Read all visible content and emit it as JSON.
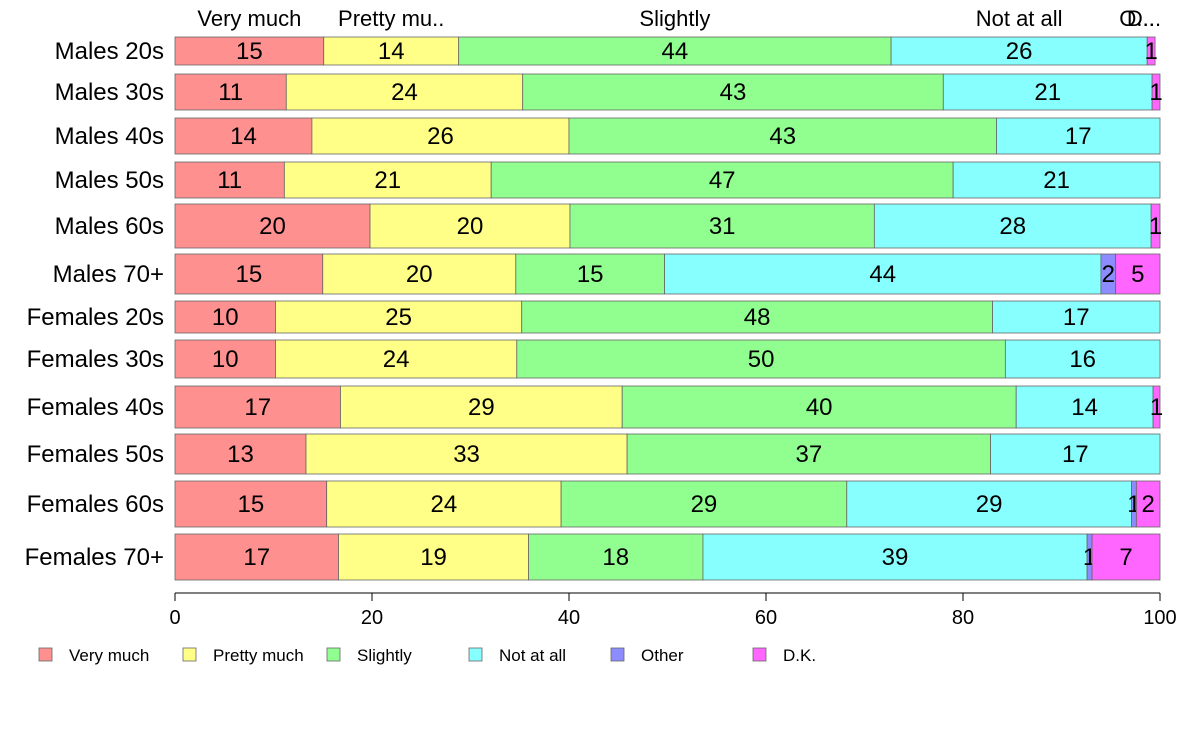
{
  "chart_data": {
    "type": "bar",
    "orientation": "horizontal",
    "stacked": true,
    "categories": [
      "Males 20s",
      "Males 30s",
      "Males 40s",
      "Males 50s",
      "Males 60s",
      "Males 70+",
      "Females 20s",
      "Females 30s",
      "Females 40s",
      "Females 50s",
      "Females 60s",
      "Females 70+"
    ],
    "series": [
      {
        "name": "Very much",
        "color": "#ff9090",
        "values": [
          15,
          11,
          14,
          11,
          20,
          15,
          10,
          10,
          17,
          13,
          15,
          17
        ]
      },
      {
        "name": "Pretty much",
        "color": "#ffff88",
        "values": [
          14,
          24,
          26,
          21,
          20,
          20,
          25,
          24,
          29,
          33,
          24,
          19
        ]
      },
      {
        "name": "Slightly",
        "color": "#90ff90",
        "values": [
          44,
          43,
          43,
          47,
          31,
          15,
          48,
          50,
          40,
          37,
          29,
          18
        ]
      },
      {
        "name": "Not at all",
        "color": "#88ffff",
        "values": [
          26,
          21,
          17,
          21,
          28,
          44,
          17,
          16,
          14,
          17,
          29,
          39
        ]
      },
      {
        "name": "Other",
        "color": "#8c8cff",
        "values": [
          0,
          0,
          0,
          0,
          0,
          2,
          0,
          0,
          0,
          0,
          1,
          1
        ]
      },
      {
        "name": "D.K.",
        "color": "#ff66ff",
        "values": [
          1,
          1,
          0,
          0,
          1,
          5,
          0,
          0,
          1,
          0,
          2,
          7
        ]
      }
    ],
    "series_exact": {
      "Very much": [
        15.1,
        11.3,
        13.9,
        11.1,
        19.8,
        15.0,
        10.2,
        10.2,
        16.8,
        13.3,
        15.4,
        16.6
      ],
      "Pretty much": [
        13.7,
        24.0,
        26.1,
        21.0,
        20.3,
        19.6,
        25.0,
        24.5,
        28.6,
        32.6,
        23.8,
        19.3
      ],
      "Slightly": [
        43.9,
        42.7,
        43.4,
        46.9,
        30.9,
        15.1,
        47.8,
        49.6,
        40.0,
        36.9,
        29.0,
        17.7
      ],
      "Not at all": [
        26.0,
        21.2,
        16.6,
        21.0,
        28.1,
        44.3,
        17.0,
        15.7,
        13.9,
        17.2,
        28.9,
        39.0
      ],
      "Other": [
        0,
        0,
        0,
        0,
        0,
        1.5,
        0,
        0,
        0,
        0,
        0.5,
        0.5
      ],
      "D.K.": [
        0.8,
        0.8,
        0,
        0,
        0.9,
        4.5,
        0,
        0,
        0.7,
        0,
        2.4,
        6.9
      ]
    },
    "top_category_labels": [
      "Very much",
      "Pretty mu..",
      "Slightly",
      "Not at all",
      "O...",
      "D..."
    ],
    "xlim": [
      0,
      100
    ],
    "xticks": [
      0,
      20,
      40,
      60,
      80,
      100
    ],
    "legend": "bottom",
    "grid": false
  }
}
